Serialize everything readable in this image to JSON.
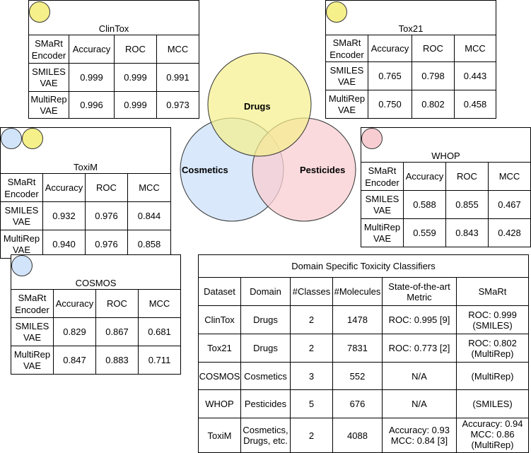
{
  "tables": {
    "clintox": {
      "title": "ClinTox",
      "headers": [
        "SMaRt\nEncoder",
        "Accuracy",
        "ROC",
        "MCC"
      ],
      "rows": [
        [
          "SMILES\nVAE",
          "0.999",
          "0.999",
          "0.991"
        ],
        [
          "MultiRep\nVAE",
          "0.996",
          "0.999",
          "0.973"
        ]
      ]
    },
    "tox21": {
      "title": "Tox21",
      "headers": [
        "SMaRt\nEncoder",
        "Accuracy",
        "ROC",
        "MCC"
      ],
      "rows": [
        [
          "SMILES\nVAE",
          "0.765",
          "0.798",
          "0.443"
        ],
        [
          "MultiRep\nVAE",
          "0.750",
          "0.802",
          "0.458"
        ]
      ]
    },
    "toxim": {
      "title": "ToxiM",
      "headers": [
        "SMaRt\nEncoder",
        "Accuracy",
        "ROC",
        "MCC"
      ],
      "rows": [
        [
          "SMILES\nVAE",
          "0.932",
          "0.976",
          "0.844"
        ],
        [
          "MultiRep\nVAE",
          "0.940",
          "0.976",
          "0.858"
        ]
      ]
    },
    "whop": {
      "title": "WHOP",
      "headers": [
        "SMaRt\nEncoder",
        "Accuracy",
        "ROC",
        "MCC"
      ],
      "rows": [
        [
          "SMILES\nVAE",
          "0.588",
          "0.855",
          "0.467"
        ],
        [
          "MultiRep\nVAE",
          "0.559",
          "0.843",
          "0.428"
        ]
      ]
    },
    "cosmos": {
      "title": "COSMOS",
      "headers": [
        "SMaRt\nEncoder",
        "Accuracy",
        "ROC",
        "MCC"
      ],
      "rows": [
        [
          "SMILES\nVAE",
          "0.829",
          "0.867",
          "0.681"
        ],
        [
          "MultiRep\nVAE",
          "0.847",
          "0.883",
          "0.711"
        ]
      ]
    }
  },
  "venn": {
    "drugs": "Drugs",
    "cosmetics": "Cosmetics",
    "pesticides": "Pesticides"
  },
  "colors": {
    "drugs": "#f5f08a",
    "cosmetics": "#d2e4f9",
    "pesticides": "#f8cdd1"
  },
  "summary": {
    "title": "Domain Specific Toxicity Classifiers",
    "headers": [
      "Dataset",
      "Domain",
      "#Classes",
      "#Molecules",
      "State-of-the-art\nMetric",
      "SMaRt"
    ],
    "rows": [
      [
        "ClinTox",
        "Drugs",
        "2",
        "1478",
        "ROC: 0.995 [9]",
        "ROC: 0.999\n(SMILES)"
      ],
      [
        "Tox21",
        "Drugs",
        "2",
        "7831",
        "ROC: 0.773 [2]",
        "ROC: 0.802\n(MultiRep)"
      ],
      [
        "COSMOS",
        "Cosmetics",
        "3",
        "552",
        "N/A",
        "(MultiRep)"
      ],
      [
        "WHOP",
        "Pesticides",
        "5",
        "676",
        "N/A",
        "(SMILES)"
      ],
      [
        "ToxiM",
        "Cosmetics,\nDrugs, etc.",
        "2",
        "4088",
        "Accuracy: 0.93\nMCC: 0.84 [3]",
        "Accuracy: 0.94\nMCC: 0.86\n(MultiRep)"
      ]
    ]
  }
}
